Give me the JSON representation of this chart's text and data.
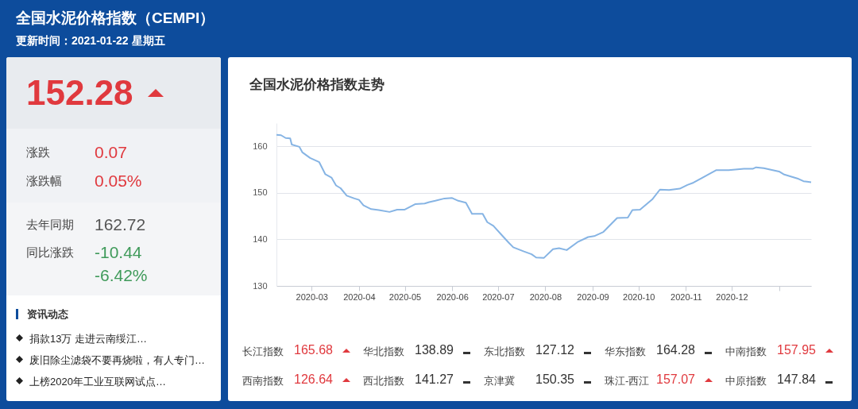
{
  "chart_data": {
    "type": "line",
    "title": "全国水泥价格指数（CEMPI）",
    "subtitle": "更新时间：2021-01-22 星期五",
    "annotations": [
      "全国水泥价格指数走势",
      "152.28",
      "涨跌",
      "0.07",
      "涨跌幅",
      "0.05%",
      "去年同期",
      "162.72",
      "同比涨跌",
      "-10.44",
      "-6.42%",
      "资讯动态",
      "捐款13万 走进云南绥江…",
      "废旧除尘滤袋不要再烧啦，有人专门…",
      "上榜2020年工业互联网试点…",
      "长江指数",
      "165.68",
      "华北指数",
      "138.89",
      "东北指数",
      "127.12",
      "华东指数",
      "164.28",
      "中南指数",
      "157.95",
      "西南指数",
      "126.64",
      "西北指数",
      "141.27",
      "京津冀",
      "150.35",
      "珠江-西江",
      "157.07",
      "中原指数",
      "147.84"
    ],
    "x": [
      "2020-02-07",
      "2020-02-10",
      "2020-02-13",
      "2020-02-16",
      "2020-02-17",
      "2020-02-22",
      "2020-02-24",
      "2020-02-29",
      "2020-03-06",
      "2020-03-10",
      "2020-03-14",
      "2020-03-17",
      "2020-03-20",
      "2020-03-24",
      "2020-03-29",
      "2020-04-01",
      "2020-04-04",
      "2020-04-09",
      "2020-04-14",
      "2020-04-21",
      "2020-04-26",
      "2020-05-01",
      "2020-05-08",
      "2020-05-14",
      "2020-05-17",
      "2020-05-21",
      "2020-05-27",
      "2020-06-01",
      "2020-06-05",
      "2020-06-10",
      "2020-06-14",
      "2020-06-21",
      "2020-06-24",
      "2020-06-28",
      "2020-07-03",
      "2020-07-08",
      "2020-07-11",
      "2020-07-18",
      "2020-07-23",
      "2020-07-26",
      "2020-07-31",
      "2020-08-06",
      "2020-08-10",
      "2020-08-15",
      "2020-08-22",
      "2020-08-29",
      "2020-09-02",
      "2020-09-08",
      "2020-09-17",
      "2020-09-24",
      "2020-09-27",
      "2020-10-02",
      "2020-10-10",
      "2020-10-15",
      "2020-10-21",
      "2020-10-28",
      "2020-11-02",
      "2020-11-06",
      "2020-11-12",
      "2020-11-16",
      "2020-11-21",
      "2020-11-29",
      "2020-12-09",
      "2020-12-15",
      "2020-12-17",
      "2020-12-22",
      "2021-01-01",
      "2021-01-04",
      "2021-01-13",
      "2021-01-17",
      "2021-01-22"
    ],
    "series": [
      {
        "color": "#86b4e4",
        "values": [
          162.5,
          162.4,
          161.8,
          161.7,
          160.4,
          159.9,
          158.7,
          157.5,
          156.6,
          154.0,
          153.3,
          151.6,
          151.0,
          149.4,
          148.8,
          148.5,
          147.3,
          146.5,
          146.3,
          145.9,
          146.4,
          146.4,
          147.6,
          147.7,
          148.0,
          148.3,
          148.8,
          148.9,
          148.3,
          147.9,
          145.5,
          145.5,
          143.7,
          142.9,
          141.1,
          139.3,
          138.3,
          137.4,
          136.8,
          136.1,
          136.0,
          137.9,
          138.1,
          137.7,
          139.4,
          140.5,
          140.7,
          141.6,
          144.6,
          144.7,
          146.3,
          146.4,
          148.6,
          150.7,
          150.6,
          150.9,
          151.7,
          152.2,
          153.3,
          154.0,
          154.9,
          154.9,
          155.2,
          155.2,
          155.5,
          155.3,
          154.6,
          154.0,
          153.1,
          152.5,
          152.3
        ]
      }
    ],
    "xlim": [
      "2020-02-07",
      "2021-01-22"
    ],
    "xticks": [
      "2020-03",
      "2020-04",
      "2020-05",
      "2020-06",
      "2020-07",
      "2020-08",
      "2020-09",
      "2020-10",
      "2020-11",
      "2020-12",
      {
        "value": "2021-01",
        "label": null
      }
    ],
    "ylim": [
      130,
      165
    ],
    "yticks": [
      130,
      140,
      150,
      160
    ],
    "grid": "y",
    "legend": false,
    "marker": "none",
    "line_style": "solid"
  }
}
